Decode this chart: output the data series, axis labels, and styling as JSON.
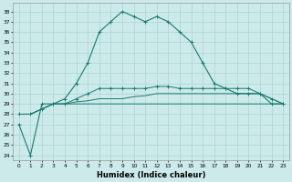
{
  "xlabel": "Humidex (Indice chaleur)",
  "x": [
    0,
    1,
    2,
    3,
    4,
    5,
    6,
    7,
    8,
    9,
    10,
    11,
    12,
    13,
    14,
    15,
    16,
    17,
    18,
    19,
    20,
    21,
    22,
    23
  ],
  "line1": [
    27,
    24,
    29,
    29,
    29.5,
    31,
    33,
    36,
    37,
    38,
    37.5,
    37,
    37.5,
    37,
    36,
    35,
    33,
    31,
    30.5,
    30,
    30,
    30,
    29,
    29
  ],
  "line2": [
    28,
    28,
    28.5,
    29,
    29,
    29,
    29,
    29,
    29,
    29,
    29,
    29,
    29,
    29,
    29,
    29,
    29,
    29,
    29,
    29,
    29,
    29,
    29,
    29
  ],
  "line3": [
    28,
    28,
    28.5,
    29,
    29,
    29.2,
    29.3,
    29.5,
    29.5,
    29.5,
    29.7,
    29.8,
    30,
    30,
    30,
    30,
    30,
    30,
    30,
    30,
    30,
    30,
    29.5,
    29
  ],
  "line4": [
    28,
    28,
    28.5,
    29,
    29,
    29.5,
    30,
    30.5,
    30.5,
    30.5,
    30.5,
    30.5,
    30.7,
    30.7,
    30.5,
    30.5,
    30.5,
    30.5,
    30.5,
    30.5,
    30.5,
    30,
    29.5,
    29
  ],
  "ylim_min": 23.5,
  "ylim_max": 38.8,
  "ytick_min": 24,
  "ytick_max": 38,
  "color": "#1a7a6e",
  "bg_color": "#cceaea",
  "grid_color": "#aad4d4",
  "spine_color": "#999999",
  "xlabel_fontsize": 6,
  "tick_fontsize": 4.2
}
